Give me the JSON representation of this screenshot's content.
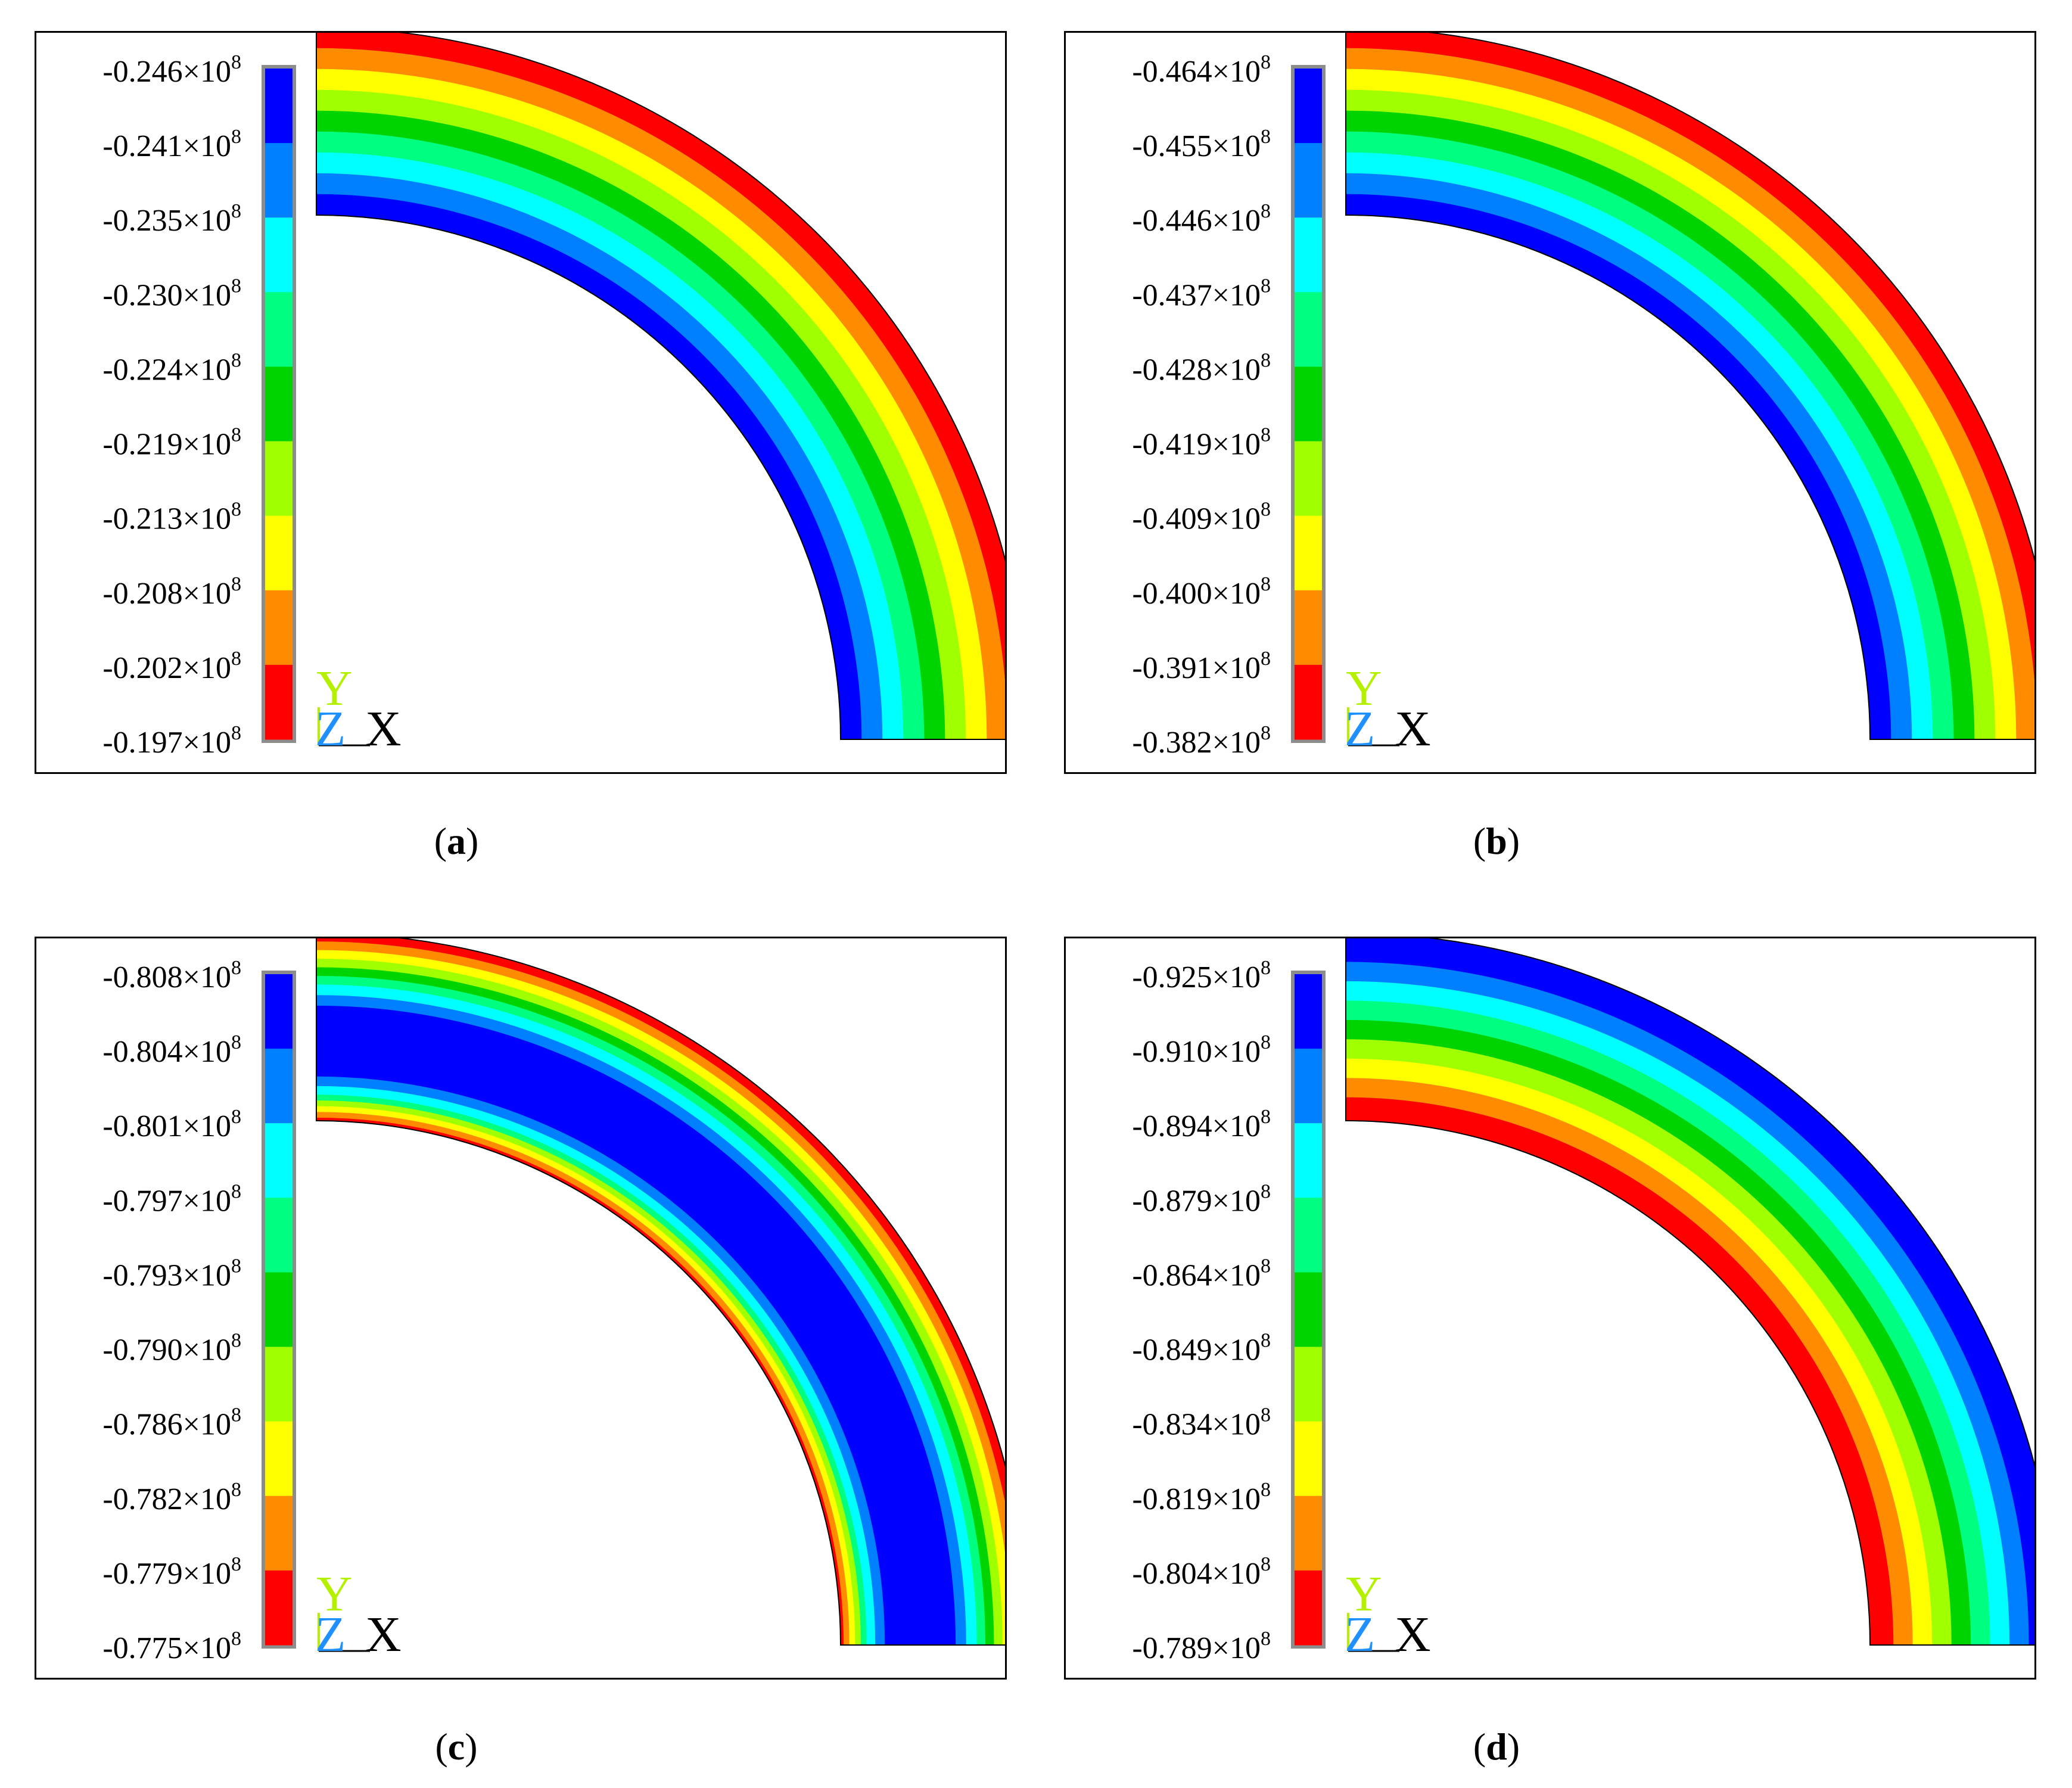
{
  "colors": {
    "scale_top_to_bottom": [
      "#0000ff",
      "#0080ff",
      "#00ffff",
      "#00ff80",
      "#00d400",
      "#a0ff00",
      "#ffff00",
      "#ff8c00",
      "#ff0000"
    ],
    "axis_y": "#b4f000",
    "axis_z": "#1e90ff",
    "axis_x": "#000000",
    "legend_frame": "#8c8c8c"
  },
  "panels": [
    {
      "caption": "a",
      "labels": [
        "-0.246",
        "-0.241",
        "-0.235",
        "-0.230",
        "-0.224",
        "-0.219",
        "-0.213",
        "-0.208",
        "-0.202",
        "-0.197"
      ],
      "ring_bands_outer_to_inner": [
        {
          "c": "#ff0000",
          "w": 1
        },
        {
          "c": "#ff8c00",
          "w": 1
        },
        {
          "c": "#ffff00",
          "w": 1
        },
        {
          "c": "#a0ff00",
          "w": 1
        },
        {
          "c": "#00d400",
          "w": 1
        },
        {
          "c": "#00ff80",
          "w": 1
        },
        {
          "c": "#00ffff",
          "w": 1
        },
        {
          "c": "#0080ff",
          "w": 1
        },
        {
          "c": "#0000ff",
          "w": 1
        }
      ]
    },
    {
      "caption": "b",
      "labels": [
        "-0.464",
        "-0.455",
        "-0.446",
        "-0.437",
        "-0.428",
        "-0.419",
        "-0.409",
        "-0.400",
        "-0.391",
        "-0.382"
      ],
      "ring_bands_outer_to_inner": [
        {
          "c": "#ff0000",
          "w": 1
        },
        {
          "c": "#ff8c00",
          "w": 1
        },
        {
          "c": "#ffff00",
          "w": 1
        },
        {
          "c": "#a0ff00",
          "w": 1
        },
        {
          "c": "#00d400",
          "w": 1
        },
        {
          "c": "#00ff80",
          "w": 1
        },
        {
          "c": "#00ffff",
          "w": 1
        },
        {
          "c": "#0080ff",
          "w": 1
        },
        {
          "c": "#0000ff",
          "w": 1
        }
      ]
    },
    {
      "caption": "c",
      "labels": [
        "-0.808",
        "-0.804",
        "-0.801",
        "-0.797",
        "-0.793",
        "-0.790",
        "-0.786",
        "-0.782",
        "-0.779",
        "-0.775"
      ],
      "ring_bands_outer_to_inner": [
        {
          "c": "#ff0000",
          "w": 0.45
        },
        {
          "c": "#ff8c00",
          "w": 0.45
        },
        {
          "c": "#ffff00",
          "w": 0.45
        },
        {
          "c": "#a0ff00",
          "w": 0.45
        },
        {
          "c": "#00d400",
          "w": 0.45
        },
        {
          "c": "#00ff80",
          "w": 0.45
        },
        {
          "c": "#00ffff",
          "w": 0.55
        },
        {
          "c": "#0080ff",
          "w": 0.55
        },
        {
          "c": "#0000ff",
          "w": 3.7
        },
        {
          "c": "#0080ff",
          "w": 0.5
        },
        {
          "c": "#00ffff",
          "w": 0.45
        },
        {
          "c": "#00ff80",
          "w": 0.3
        },
        {
          "c": "#a0ff00",
          "w": 0.3
        },
        {
          "c": "#ffff00",
          "w": 0.3
        },
        {
          "c": "#ff8c00",
          "w": 0.3
        },
        {
          "c": "#ff0000",
          "w": 0.15
        }
      ]
    },
    {
      "caption": "d",
      "labels": [
        "-0.925",
        "-0.910",
        "-0.894",
        "-0.879",
        "-0.864",
        "-0.849",
        "-0.834",
        "-0.819",
        "-0.804",
        "-0.789"
      ],
      "ring_bands_outer_to_inner": [
        {
          "c": "#0000ff",
          "w": 1.5
        },
        {
          "c": "#0080ff",
          "w": 1
        },
        {
          "c": "#00ffff",
          "w": 1
        },
        {
          "c": "#00ff80",
          "w": 1
        },
        {
          "c": "#00d400",
          "w": 1
        },
        {
          "c": "#a0ff00",
          "w": 1
        },
        {
          "c": "#ffff00",
          "w": 1
        },
        {
          "c": "#ff8c00",
          "w": 1
        },
        {
          "c": "#ff0000",
          "w": 1.2
        }
      ]
    }
  ],
  "exponent_suffix": "×10",
  "exponent": "8",
  "axis": {
    "y": "Y",
    "z": "Z",
    "x": "X"
  },
  "caption_open": "(",
  "caption_close": ")"
}
